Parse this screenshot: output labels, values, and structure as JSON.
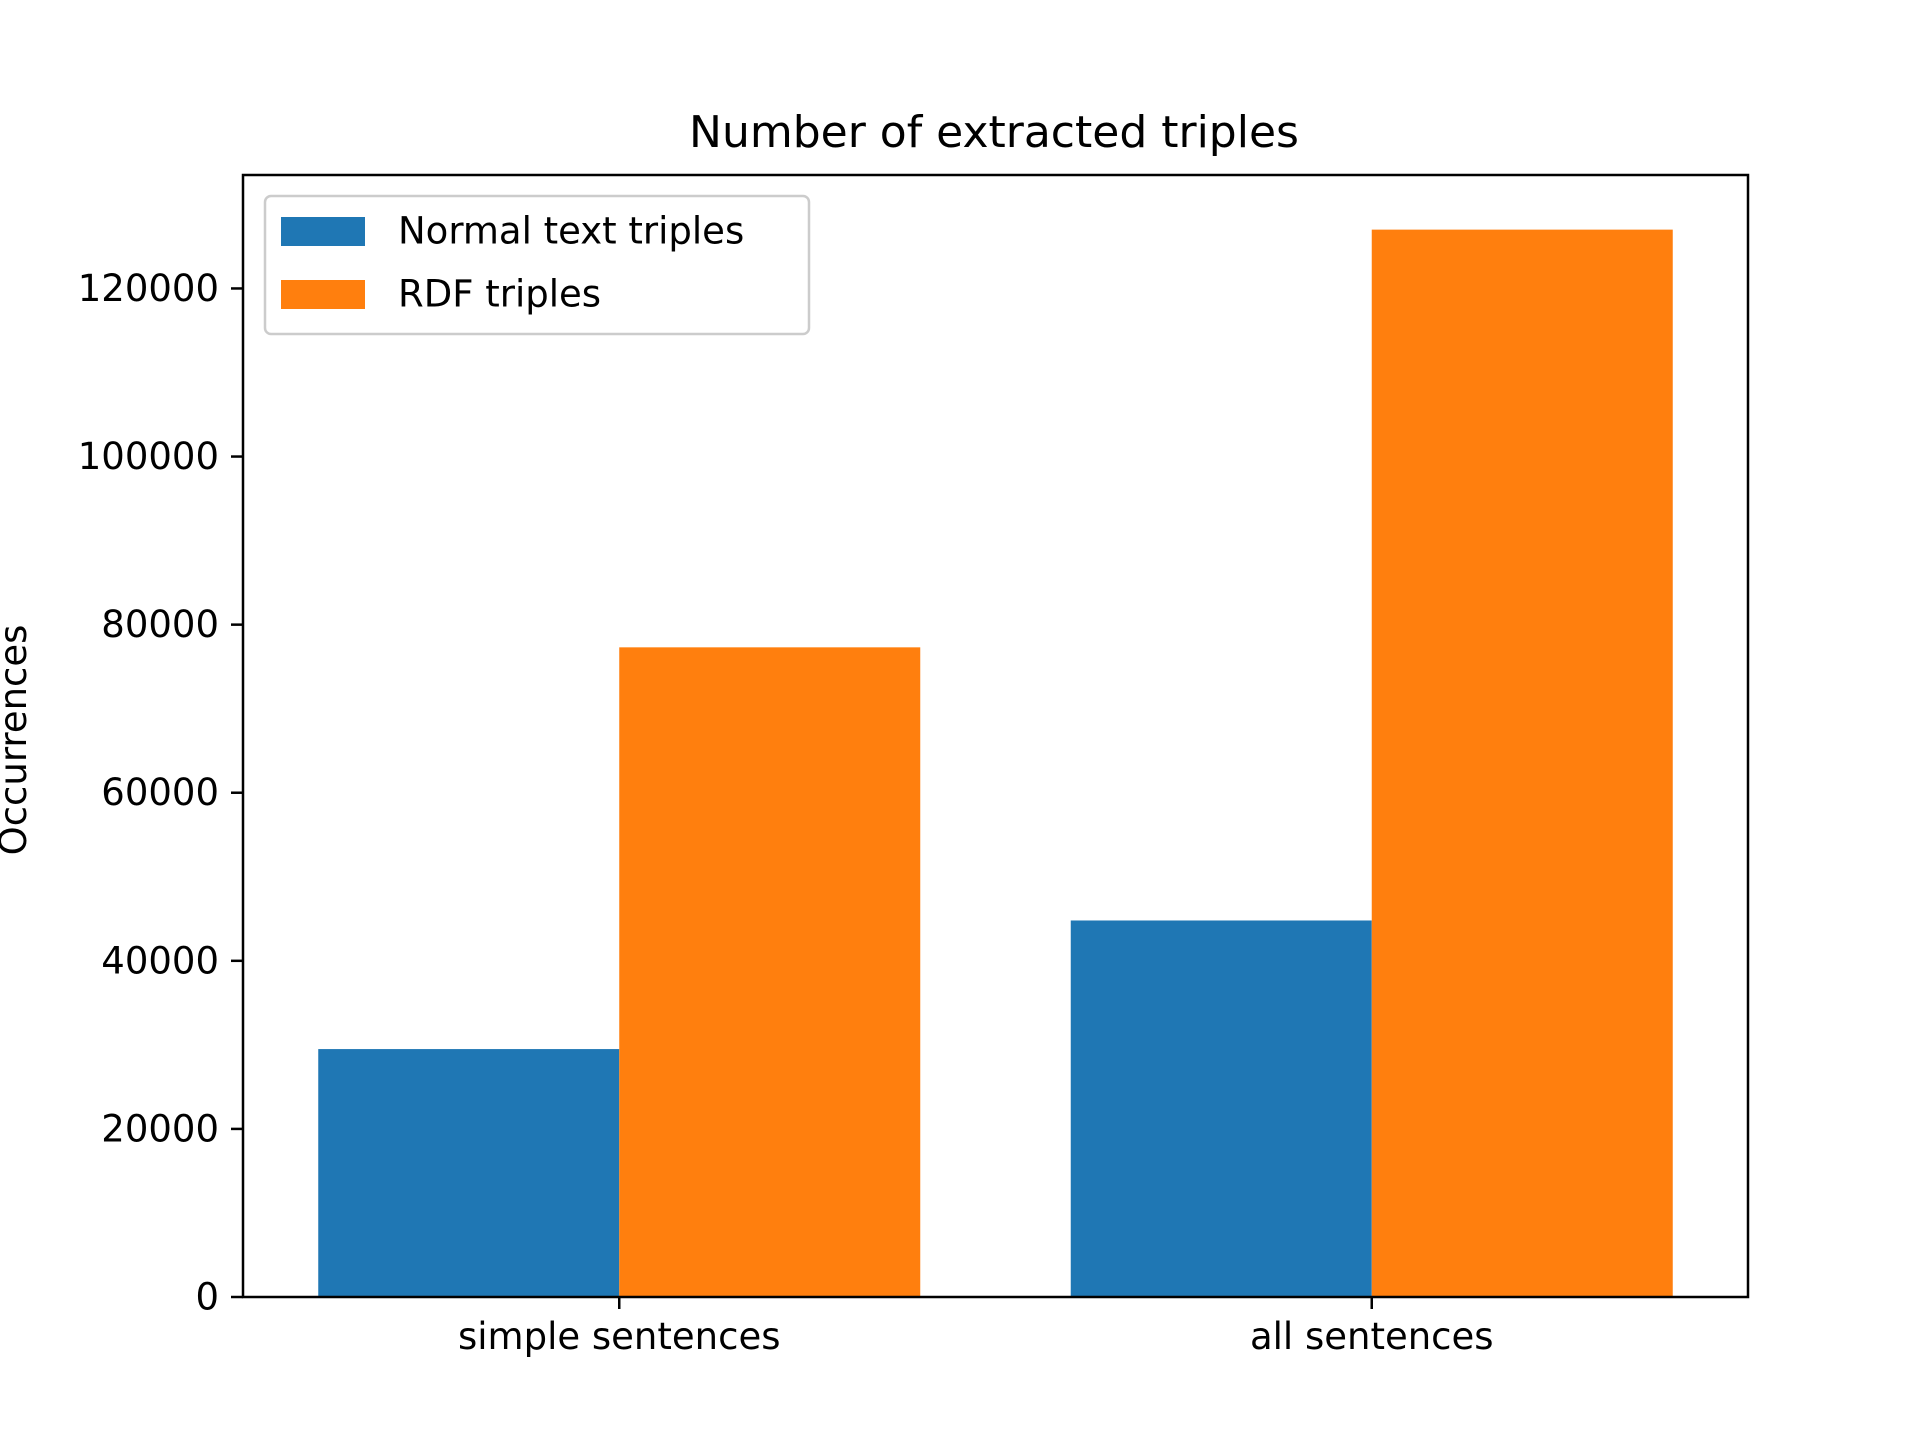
{
  "chart_data": {
    "type": "bar",
    "title": "Number of extracted triples",
    "xlabel": "",
    "ylabel": "Occurrences",
    "categories": [
      "simple sentences",
      "all sentences"
    ],
    "series": [
      {
        "name": "Normal text triples",
        "color": "#1f77b4",
        "values": [
          29500,
          44800
        ]
      },
      {
        "name": "RDF triples",
        "color": "#ff7f0e",
        "values": [
          77300,
          127000
        ]
      }
    ],
    "ylim": [
      0,
      133500
    ],
    "yticks": [
      0,
      20000,
      40000,
      60000,
      80000,
      100000,
      120000
    ],
    "ytick_labels": [
      "0",
      "20000",
      "40000",
      "60000",
      "80000",
      "100000",
      "120000"
    ],
    "grid": false,
    "legend_position": "top-left"
  }
}
